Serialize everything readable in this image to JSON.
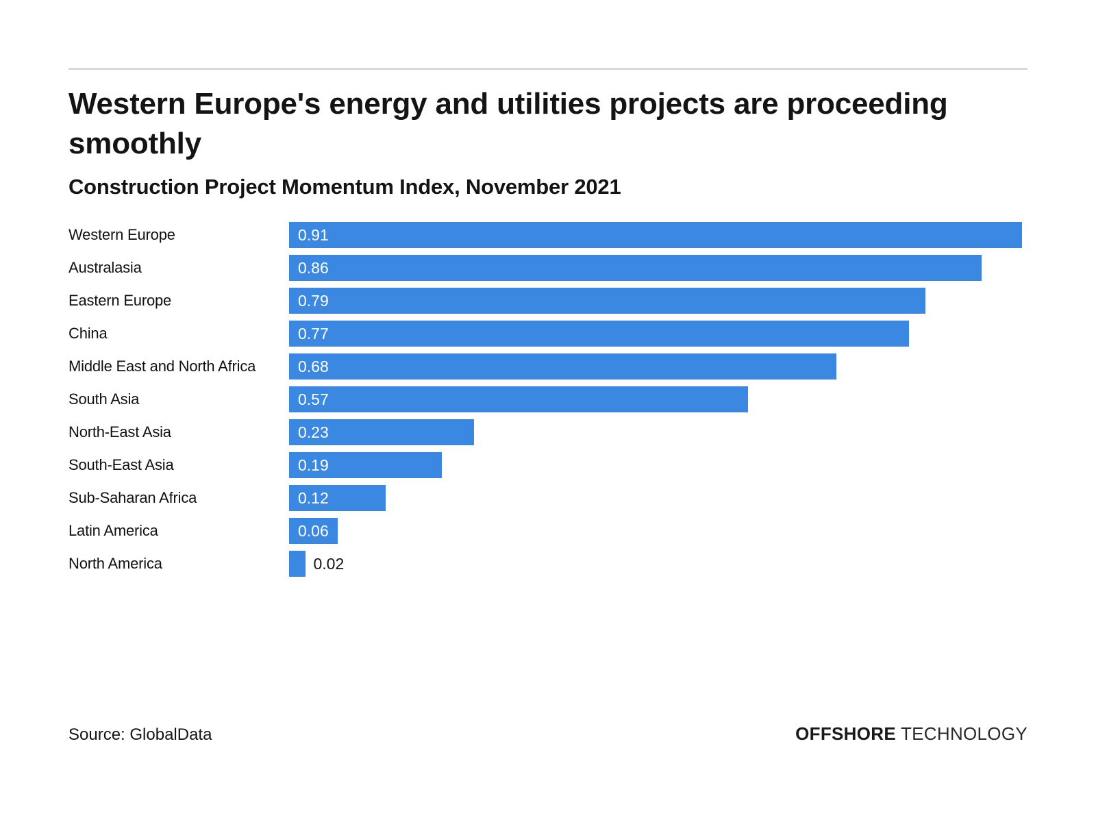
{
  "header": {
    "title": "Western Europe's energy and utilities projects are proceeding smoothly",
    "subtitle": "Construction Project Momentum Index, November 2021"
  },
  "footer": {
    "source": "Source: GlobalData",
    "brand_part1": "OFFSHORE",
    "brand_part2": "TECHNOLOGY"
  },
  "colors": {
    "bar": "#3a88e1",
    "value_inside": "#ffffff",
    "value_outside": "#141414",
    "divider": "#d9d9d9",
    "text": "#141414"
  },
  "chart_data": {
    "type": "bar",
    "orientation": "horizontal",
    "title": "Western Europe's energy and utilities projects are proceeding smoothly",
    "subtitle": "Construction Project Momentum Index, November 2021",
    "categories": [
      "Western Europe",
      "Australasia",
      "Eastern Europe",
      "China",
      "Middle East and North Africa",
      "South Asia",
      "North-East Asia",
      "South-East Asia",
      "Sub-Saharan Africa",
      "Latin America",
      "North America"
    ],
    "values": [
      0.91,
      0.86,
      0.79,
      0.77,
      0.68,
      0.57,
      0.23,
      0.19,
      0.12,
      0.06,
      0.02
    ],
    "value_labels": [
      "0.91",
      "0.86",
      "0.79",
      "0.77",
      "0.68",
      "0.57",
      "0.23",
      "0.19",
      "0.12",
      "0.06",
      "0.02"
    ],
    "xlim": [
      0,
      0.917
    ],
    "grid": false,
    "legend": false,
    "value_label_position": "inside-start (outside for smallest bar)",
    "source": "Source: GlobalData"
  }
}
